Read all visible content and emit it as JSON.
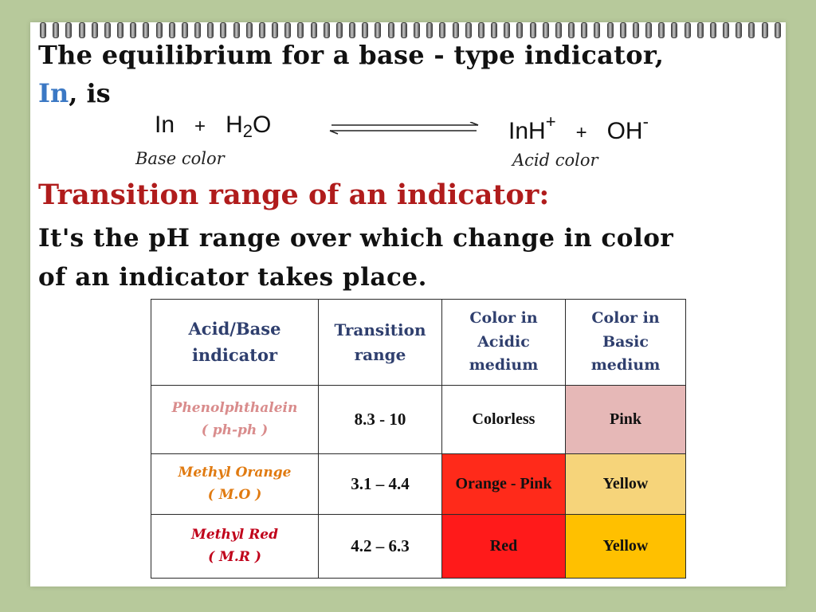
{
  "intro": {
    "line1": "The  equilibrium  for a base - type indicator,",
    "in_word": "In",
    "line2_rest": ", is"
  },
  "equation": {
    "left_in": "In",
    "left_plus": "+",
    "left_h2o_h": "H",
    "left_h2o_sub": "2",
    "left_h2o_o": "O",
    "right_inh": "InH",
    "right_inh_sup": "+",
    "right_plus": "+",
    "right_oh": "OH",
    "right_oh_sup": "-",
    "base_caption": "Base color",
    "acid_caption": "Acid color"
  },
  "heading": "Transition range of an indicator:",
  "definition": {
    "line1": "It's the pH range over which change in  color",
    "line2": "of an indicator takes place."
  },
  "colors": {
    "heading": "#b01c1c",
    "in_word": "#3b78c4",
    "table_header": "#2f3f6e",
    "phenolphthalein_name": "#d98c8c",
    "methyl_orange_name": "#e07a10",
    "methyl_red_name": "#c0001a",
    "pink_cell": "#e6b8b7",
    "orange_pink_cell": "#ff2a1a",
    "red_cell": "#ff1a1a",
    "yellow_cell_light": "#f6d47a",
    "yellow_cell_dark": "#ffc000"
  },
  "table": {
    "headers": {
      "acid_base_line1": "Acid/Base",
      "acid_base_line2": "indicator",
      "transition_line1": "Transition",
      "transition_line2": "range",
      "acidic_line1": "Color in",
      "acidic_line2": "Acidic",
      "acidic_line3": "medium",
      "basic_line1": "Color in",
      "basic_line2": "Basic",
      "basic_line3": "medium"
    },
    "rows": [
      {
        "name": "Phenolphthalein",
        "abbr": "( ph-ph )",
        "range": "8.3 - 10",
        "acidic": "Colorless",
        "basic": "Pink"
      },
      {
        "name": "Methyl Orange",
        "abbr": "( M.O )",
        "range": "3.1 – 4.4",
        "acidic": "Orange - Pink",
        "basic": "Yellow"
      },
      {
        "name": "Methyl Red",
        "abbr": "( M.R )",
        "range": "4.2 – 6.3",
        "acidic": "Red",
        "basic": "Yellow"
      }
    ]
  }
}
